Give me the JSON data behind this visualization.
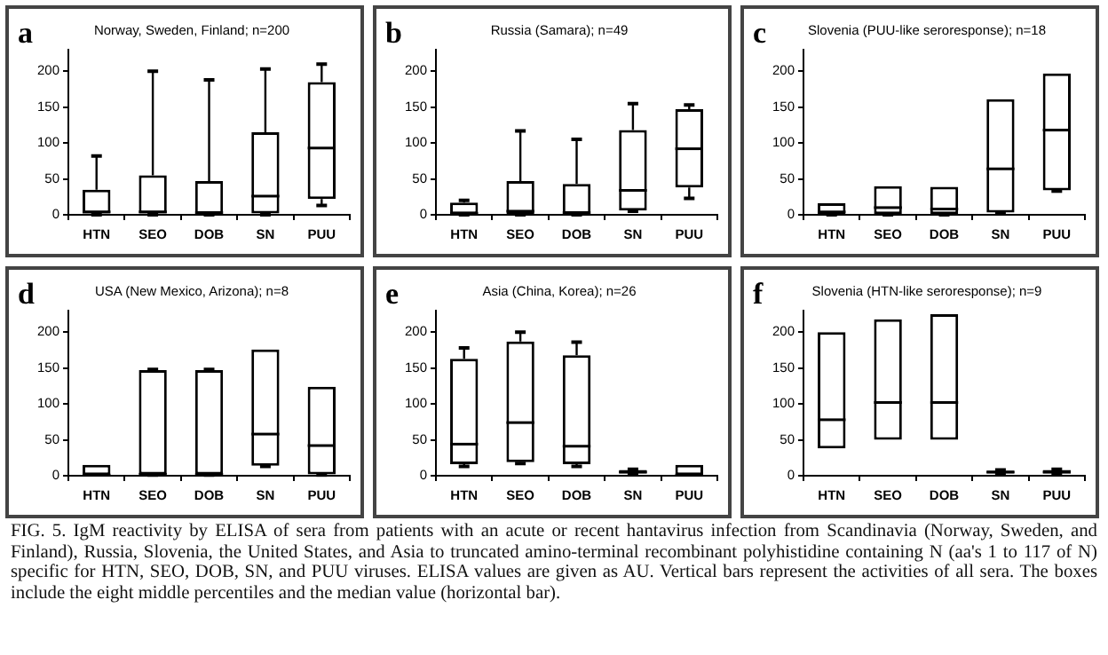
{
  "chart_data": [
    {
      "type": "box",
      "title": "Norway, Sweden, Finland; n=200",
      "annotations": [
        "a"
      ],
      "categories": [
        "HTN",
        "SEO",
        "DOB",
        "SN",
        "PUU"
      ],
      "ylim": [
        0,
        230
      ],
      "yticks": [
        0,
        50,
        100,
        150,
        200
      ],
      "grid": false,
      "legend": false,
      "series": [
        {
          "color": "#000000",
          "boxes": [
            {
              "low": 0,
              "q1": 2,
              "median": 4,
              "q3": 35,
              "high": 82
            },
            {
              "low": 0,
              "q1": 2,
              "median": 4,
              "q3": 55,
              "high": 200
            },
            {
              "low": 0,
              "q1": 1,
              "median": 3,
              "q3": 47,
              "high": 188
            },
            {
              "low": 0,
              "q1": 2,
              "median": 26,
              "q3": 115,
              "high": 203
            },
            {
              "low": 13,
              "q1": 22,
              "median": 93,
              "q3": 185,
              "high": 210
            }
          ]
        }
      ]
    },
    {
      "type": "box",
      "title": "Russia (Samara); n=49",
      "annotations": [
        "b"
      ],
      "categories": [
        "HTN",
        "SEO",
        "DOB",
        "SN",
        "PUU"
      ],
      "ylim": [
        0,
        230
      ],
      "yticks": [
        0,
        50,
        100,
        150,
        200
      ],
      "grid": false,
      "legend": false,
      "series": [
        {
          "color": "#000000",
          "boxes": [
            {
              "low": 0,
              "q1": 1,
              "median": 2,
              "q3": 17,
              "high": 20
            },
            {
              "low": 0,
              "q1": 1,
              "median": 5,
              "q3": 47,
              "high": 117
            },
            {
              "low": 0,
              "q1": 1,
              "median": 3,
              "q3": 43,
              "high": 105
            },
            {
              "low": 5,
              "q1": 6,
              "median": 34,
              "q3": 118,
              "high": 155
            },
            {
              "low": 23,
              "q1": 38,
              "median": 92,
              "q3": 147,
              "high": 153
            }
          ]
        }
      ]
    },
    {
      "type": "box",
      "title": "Slovenia (PUU-like seroresponse); n=18",
      "annotations": [
        "c"
      ],
      "categories": [
        "HTN",
        "SEO",
        "DOB",
        "SN",
        "PUU"
      ],
      "ylim": [
        0,
        230
      ],
      "yticks": [
        0,
        50,
        100,
        150,
        200
      ],
      "grid": false,
      "legend": false,
      "series": [
        {
          "color": "#000000",
          "boxes": [
            {
              "low": 0,
              "q1": 1,
              "median": 4,
              "q3": 16,
              "high": 16
            },
            {
              "low": 0,
              "q1": 1,
              "median": 10,
              "q3": 40,
              "high": 40
            },
            {
              "low": 0,
              "q1": 1,
              "median": 8,
              "q3": 39,
              "high": 39
            },
            {
              "low": 2,
              "q1": 3,
              "median": 64,
              "q3": 161,
              "high": 161
            },
            {
              "low": 33,
              "q1": 34,
              "median": 118,
              "q3": 197,
              "high": 197
            }
          ]
        }
      ]
    },
    {
      "type": "box",
      "title": "USA (New Mexico, Arizona); n=8",
      "annotations": [
        "d"
      ],
      "categories": [
        "HTN",
        "SEO",
        "DOB",
        "SN",
        "PUU"
      ],
      "ylim": [
        0,
        230
      ],
      "yticks": [
        0,
        50,
        100,
        150,
        200
      ],
      "grid": false,
      "legend": false,
      "series": [
        {
          "color": "#000000",
          "boxes": [
            {
              "low": 1,
              "q1": 1,
              "median": 1,
              "q3": 15,
              "high": 15
            },
            {
              "low": 1,
              "q1": 2,
              "median": 2,
              "q3": 147,
              "high": 148
            },
            {
              "low": 1,
              "q1": 2,
              "median": 2,
              "q3": 147,
              "high": 148
            },
            {
              "low": 13,
              "q1": 14,
              "median": 58,
              "q3": 176,
              "high": 176
            },
            {
              "low": 1,
              "q1": 2,
              "median": 42,
              "q3": 124,
              "high": 124
            }
          ]
        }
      ]
    },
    {
      "type": "box",
      "title": "Asia (China, Korea); n=26",
      "annotations": [
        "e"
      ],
      "categories": [
        "HTN",
        "SEO",
        "DOB",
        "SN",
        "PUU"
      ],
      "ylim": [
        0,
        230
      ],
      "yticks": [
        0,
        50,
        100,
        150,
        200
      ],
      "grid": false,
      "legend": false,
      "series": [
        {
          "color": "#000000",
          "boxes": [
            {
              "low": 13,
              "q1": 16,
              "median": 44,
              "q3": 163,
              "high": 178
            },
            {
              "low": 17,
              "q1": 19,
              "median": 74,
              "q3": 187,
              "high": 200
            },
            {
              "low": 13,
              "q1": 16,
              "median": 41,
              "q3": 168,
              "high": 186
            },
            {
              "low": 2,
              "q1": 3,
              "median": 5,
              "q3": 8,
              "high": 9
            },
            {
              "low": 1,
              "q1": 1,
              "median": 1,
              "q3": 15,
              "high": 15
            }
          ]
        }
      ]
    },
    {
      "type": "box",
      "title": "Slovenia (HTN-like seroresponse); n=9",
      "annotations": [
        "f",
        "FIG. 5. IgM reactivity by ELISA of sera from patients with an acute or recent hantavirus infection from Scandinavia (Norway, Sweden, and Finland), Russia, Slovenia, the United States, and Asia to truncated amino-terminal recombinant polyhistidine containing N (aa's 1 to 117 of N) specific for HTN, SEO, DOB, SN, and PUU viruses. ELISA values are given as AU. Vertical bars represent the activities of all sera. The boxes include the eight middle percentiles and the median value (horizontal bar)."
      ],
      "categories": [
        "HTN",
        "SEO",
        "DOB",
        "SN",
        "PUU"
      ],
      "ylim": [
        0,
        230
      ],
      "yticks": [
        0,
        50,
        100,
        150,
        200
      ],
      "grid": false,
      "legend": false,
      "series": [
        {
          "color": "#000000",
          "boxes": [
            {
              "low": 38,
              "q1": 38,
              "median": 78,
              "q3": 200,
              "high": 200
            },
            {
              "low": 50,
              "q1": 50,
              "median": 102,
              "q3": 218,
              "high": 218
            },
            {
              "low": 50,
              "q1": 50,
              "median": 102,
              "q3": 225,
              "high": 225
            },
            {
              "low": 2,
              "q1": 3,
              "median": 5,
              "q3": 7,
              "high": 8
            },
            {
              "low": 2,
              "q1": 3,
              "median": 5,
              "q3": 8,
              "high": 9
            }
          ]
        }
      ]
    }
  ]
}
